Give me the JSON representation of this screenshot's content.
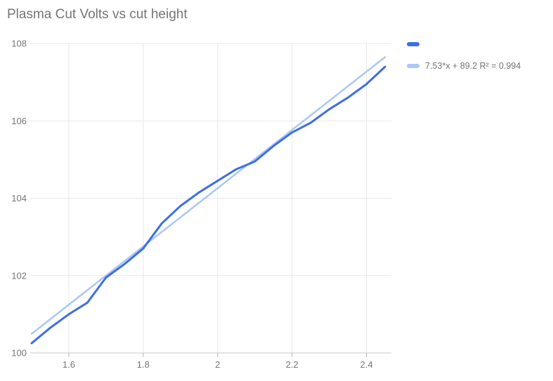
{
  "title": "Plasma Cut Volts vs cut height",
  "colors": {
    "series": "#3e6fe1",
    "trend": "#abc7f6",
    "grid": "#e7e7e7",
    "axis": "#c9c9c9",
    "tick": "#b3b3b3",
    "label": "#757575",
    "title": "#757575",
    "background": "#ffffff"
  },
  "legend": {
    "series_label": "",
    "trend_label": "7.53*x + 89.2 R² = 0.994"
  },
  "chart_data": {
    "type": "line",
    "title": "Plasma Cut Volts vs cut height",
    "xlabel": "",
    "ylabel": "",
    "xlim": [
      1.5,
      2.45
    ],
    "ylim": [
      100,
      108
    ],
    "x_ticks": [
      1.6,
      1.8,
      2.0,
      2.2,
      2.4
    ],
    "x_tick_labels": [
      "1.6",
      "1.8",
      "2",
      "2.2",
      "2.4"
    ],
    "y_ticks": [
      100,
      102,
      104,
      106,
      108
    ],
    "y_tick_labels": [
      "100",
      "102",
      "104",
      "106",
      "108"
    ],
    "grid": true,
    "legend_position": "top-right",
    "series": [
      {
        "name": "",
        "role": "data",
        "x": [
          1.5,
          1.55,
          1.6,
          1.65,
          1.7,
          1.75,
          1.8,
          1.85,
          1.9,
          1.95,
          2.0,
          2.05,
          2.1,
          2.15,
          2.2,
          2.25,
          2.3,
          2.35,
          2.4,
          2.45
        ],
        "values": [
          100.25,
          100.65,
          101.0,
          101.3,
          101.95,
          102.3,
          102.7,
          103.35,
          103.8,
          104.15,
          104.45,
          104.75,
          104.95,
          105.35,
          105.7,
          105.95,
          106.3,
          106.6,
          106.95,
          107.4
        ]
      },
      {
        "name": "7.53*x + 89.2 R² = 0.994",
        "role": "trendline",
        "slope": 7.53,
        "intercept": 89.2,
        "r2": 0.994
      }
    ]
  }
}
